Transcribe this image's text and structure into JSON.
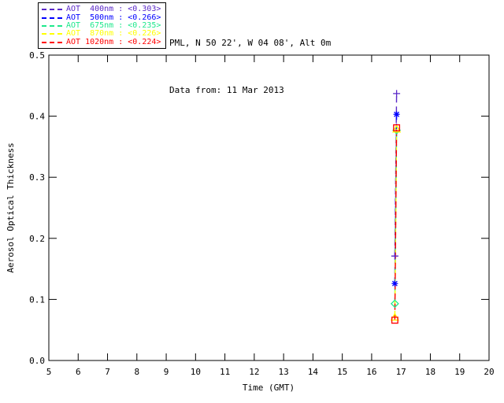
{
  "title": {
    "line1": "PML, N 50 22', W 04 08', Alt 0m",
    "line2": "Data from: 11 Mar 2013"
  },
  "chart_data": {
    "type": "line",
    "xlabel": "Time (GMT)",
    "ylabel": "Aerosol Optical Thickness",
    "xlim": [
      5,
      20
    ],
    "ylim": [
      0.0,
      0.5
    ],
    "xticks": [
      "5",
      "6",
      "7",
      "8",
      "9",
      "10",
      "11",
      "12",
      "13",
      "14",
      "15",
      "16",
      "17",
      "18",
      "19",
      "20"
    ],
    "yticks": [
      "0.0",
      "0.1",
      "0.2",
      "0.3",
      "0.4",
      "0.5"
    ],
    "grid": false,
    "line_style": "dashed",
    "legend_position": "top-left-outside",
    "legend_separator": " : ",
    "x": [
      16.79,
      16.85
    ],
    "series": [
      {
        "name": "AOT  400nm",
        "mean_label": "<0.303>",
        "color": "#5a28c8",
        "marker": "plus",
        "values": [
          0.171,
          0.437
        ]
      },
      {
        "name": "AOT  500nm",
        "mean_label": "<0.266>",
        "color": "#0000ff",
        "marker": "asterisk",
        "values": [
          0.126,
          0.403
        ]
      },
      {
        "name": "AOT  675nm",
        "mean_label": "<0.235>",
        "color": "#1ee88c",
        "marker": "diamond",
        "values": [
          0.093,
          0.377
        ]
      },
      {
        "name": "AOT  870nm",
        "mean_label": "<0.226>",
        "color": "#ffff00",
        "marker": "triangle",
        "values": [
          0.071,
          0.379
        ]
      },
      {
        "name": "AOT 1020nm",
        "mean_label": "<0.224>",
        "color": "#ff0000",
        "marker": "square",
        "values": [
          0.066,
          0.381
        ]
      }
    ]
  }
}
